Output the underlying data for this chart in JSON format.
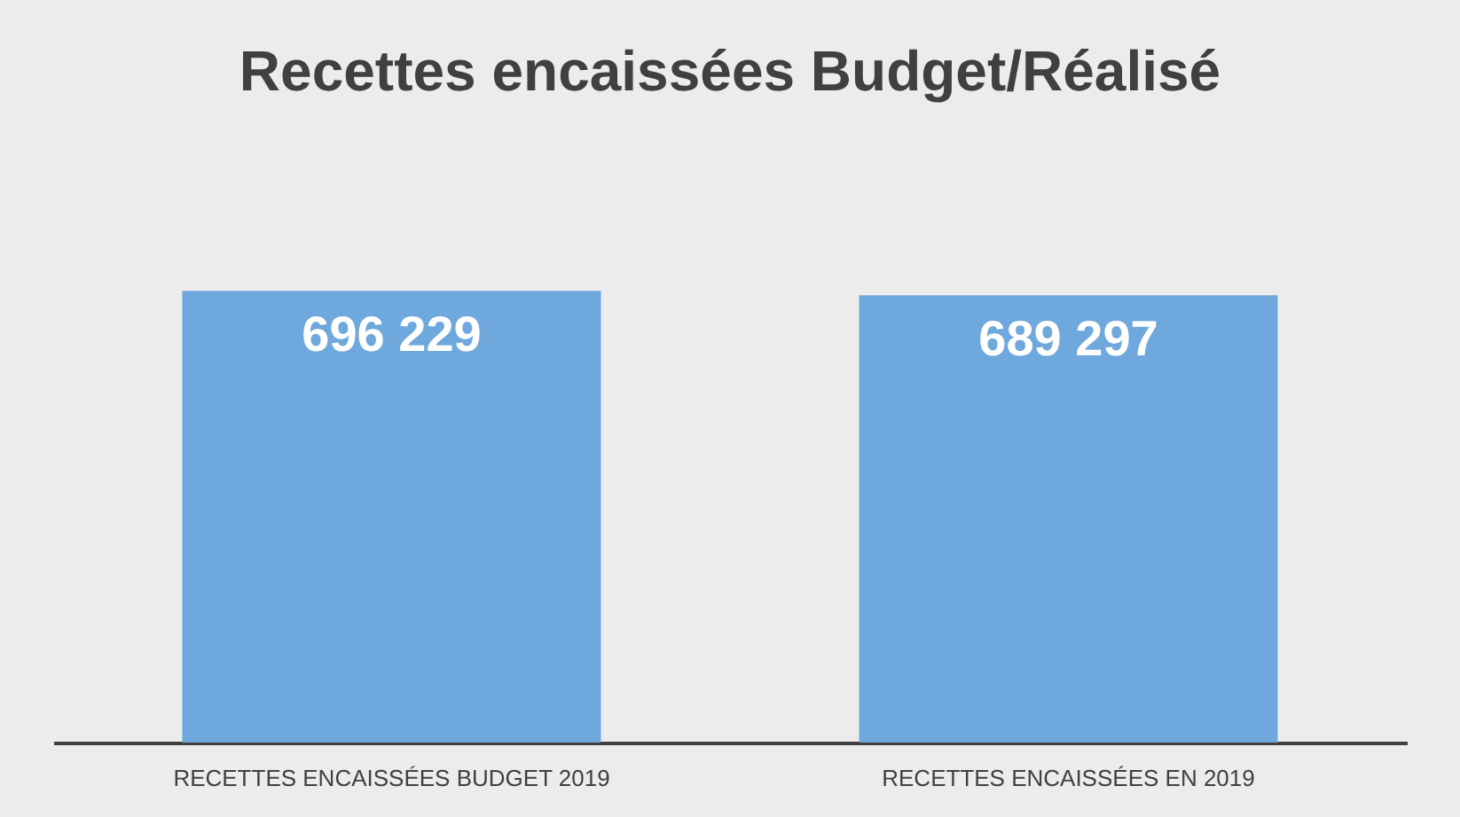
{
  "chart_data": {
    "type": "bar",
    "title": "Recettes encaissées Budget/Réalisé",
    "categories": [
      "RECETTES ENCAISSÉES BUDGET 2019",
      "RECETTES ENCAISSÉES EN 2019"
    ],
    "values": [
      696229,
      689297
    ],
    "value_labels": [
      "696 229",
      "689 297"
    ],
    "color": "#6fa8dc"
  }
}
